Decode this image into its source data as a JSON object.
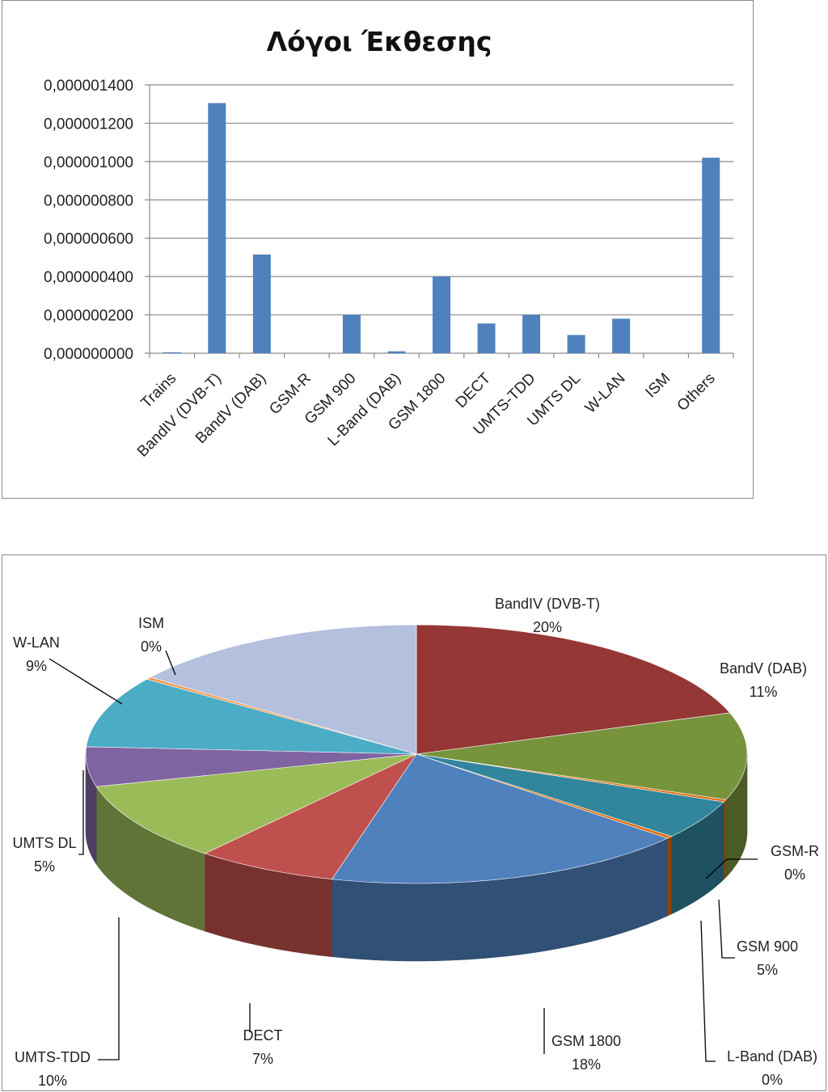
{
  "colors": {
    "bar": "#4f81bd",
    "grid": "#8c8c8c",
    "frame": "#8c8c8c"
  },
  "chart_data": [
    {
      "type": "bar",
      "title": "Λόγοι Έκθεσης",
      "categories": [
        "Trains",
        "BandIV (DVB-T)",
        "BandV (DAB)",
        "GSM-R",
        "GSM 900",
        "L-Band (DAB)",
        "GSM 1800",
        "DECT",
        "UMTS-TDD",
        "UMTS DL",
        "W-LAN",
        "ISM",
        "Others"
      ],
      "values": [
        5e-09,
        1.305e-06,
        5.15e-07,
        0.0,
        2e-07,
        1e-08,
        4e-07,
        1.55e-07,
        2e-07,
        9.5e-08,
        1.8e-07,
        0.0,
        1.02e-06
      ],
      "ylim": [
        0,
        1.4e-06
      ],
      "yticks": [
        "0,000000000",
        "0,000000200",
        "0,000000400",
        "0,000000600",
        "0,000000800",
        "0,000001000",
        "0,000001200",
        "0,000001400"
      ],
      "grid": true,
      "legend": "none"
    },
    {
      "type": "pie",
      "style": "3d",
      "categories": [
        "BandIV (DVB-T)",
        "BandV (DAB)",
        "GSM-R",
        "GSM 900",
        "L-Band (DAB)",
        "GSM 1800",
        "DECT",
        "UMTS-TDD",
        "UMTS DL",
        "W-LAN",
        "ISM",
        "Others"
      ],
      "values": [
        20,
        11,
        0,
        5,
        0,
        18,
        7,
        10,
        5,
        9,
        0,
        15
      ],
      "labels": [
        {
          "name": "BandIV (DVB-T)",
          "pct": "20%"
        },
        {
          "name": "BandV (DAB)",
          "pct": "11%"
        },
        {
          "name": "GSM-R",
          "pct": "0%"
        },
        {
          "name": "GSM 900",
          "pct": "5%"
        },
        {
          "name": "L-Band (DAB)",
          "pct": "0%"
        },
        {
          "name": "GSM 1800",
          "pct": "18%"
        },
        {
          "name": "DECT",
          "pct": "7%"
        },
        {
          "name": "UMTS-TDD",
          "pct": "10%"
        },
        {
          "name": "UMTS DL",
          "pct": "5%"
        },
        {
          "name": "W-LAN",
          "pct": "9%"
        },
        {
          "name": "ISM",
          "pct": "0%"
        }
      ],
      "colors": [
        "#953735",
        "#77933c",
        "#e46c0a",
        "#31859c",
        "#e46c0a",
        "#4f81bd",
        "#c0504d",
        "#9bbb59",
        "#8064a2",
        "#4bacc6",
        "#f79646",
        "#b4c0de"
      ]
    }
  ]
}
